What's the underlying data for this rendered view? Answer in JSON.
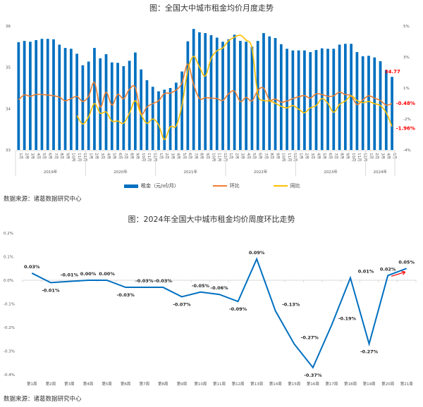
{
  "chart_data": [
    {
      "type": "bar+line",
      "title": "图：全国大中城市租金均价月度走势",
      "source": "数据来源：诸葛数据研究中心",
      "y_left": {
        "ticks": [
          "36",
          "35",
          "34",
          "33"
        ],
        "range": [
          33,
          36
        ]
      },
      "y_right": {
        "ticks": [
          "5%",
          "3%",
          "1%",
          "-2%",
          "-4%"
        ]
      },
      "years": [
        "2019年",
        "2020年",
        "2021年",
        "2022年",
        "2023年",
        "2024年"
      ],
      "month_labels": [
        "1月",
        "2月",
        "3月",
        "4月",
        "5月",
        "6月",
        "7月",
        "8月",
        "9月",
        "10月",
        "11月",
        "12月"
      ],
      "x_months_count": 65,
      "legend": [
        {
          "name": "租金（元/㎡/月）",
          "color": "#0070C0",
          "kind": "bar"
        },
        {
          "name": "环比",
          "color": "#ED7D31",
          "kind": "line"
        },
        {
          "name": "同比",
          "color": "#FFC000",
          "kind": "line"
        }
      ],
      "series": [
        {
          "name": "租金（元/㎡/月）",
          "values": [
            35.61,
            35.64,
            35.62,
            35.66,
            35.69,
            35.69,
            35.68,
            35.55,
            35.47,
            35.45,
            35.33,
            35.05,
            35.14,
            35.47,
            35.22,
            35.32,
            35.12,
            35.11,
            35.03,
            35.16,
            35.36,
            34.95,
            34.69,
            34.53,
            34.42,
            34.46,
            34.5,
            34.63,
            34.9,
            35.63,
            35.93,
            35.85,
            35.83,
            35.78,
            35.72,
            35.62,
            35.68,
            35.79,
            35.64,
            35.62,
            35.5,
            35.64,
            35.83,
            35.75,
            35.71,
            35.56,
            35.45,
            35.41,
            35.41,
            35.41,
            35.37,
            35.42,
            35.46,
            35.45,
            35.45,
            35.55,
            35.57,
            35.57,
            35.37,
            35.27,
            35.28,
            35.24,
            35.15,
            34.93,
            34.77
          ]
        },
        {
          "name": "环比",
          "values": [
            -0.24,
            0.08,
            -0.01,
            0.11,
            0.1,
            0.07,
            0.02,
            -0.07,
            -0.3,
            -0.16,
            -0.02,
            -0.34,
            -0.02,
            0.89,
            -0.7,
            0.25,
            -0.57,
            0.11,
            -0.16,
            0.43,
            0.57,
            -1.11,
            -0.7,
            -0.48,
            -0.3,
            0.16,
            0.2,
            0.39,
            0.84,
            2.07,
            0.75,
            -0.16,
            -0.1,
            -0.13,
            -0.16,
            -0.28,
            0.15,
            0.33,
            -0.35,
            -0.08,
            -0.31,
            0.37,
            0.52,
            -0.24,
            -0.19,
            -0.39,
            -0.31,
            -0.16,
            -0.04,
            0.03,
            -0.13,
            0.15,
            0.1,
            -0.01,
            0.02,
            0.26,
            0.1,
            0.02,
            -0.54,
            -0.24,
            0.02,
            -0.13,
            -0.28,
            -0.58,
            -0.48
          ]
        },
        {
          "name": "同比",
          "values": [
            null,
            null,
            null,
            null,
            null,
            null,
            null,
            null,
            null,
            null,
            -1.25,
            -1.8,
            -1.34,
            -0.48,
            -1.11,
            -1.02,
            -1.61,
            -1.61,
            -1.75,
            -1.11,
            -0.3,
            -1.2,
            -1.75,
            -1.48,
            -1.84,
            -2.8,
            -1.98,
            -1.93,
            -0.61,
            1.66,
            2.57,
            1.89,
            1.3,
            2.43,
            2.93,
            3.11,
            3.57,
            3.8,
            3.93,
            3.61,
            3.11,
            0.14,
            -0.28,
            -0.31,
            -0.46,
            -0.66,
            -0.76,
            -0.61,
            -0.84,
            -1.07,
            -0.76,
            -0.61,
            -0.16,
            -0.46,
            -1.04,
            -0.54,
            -0.31,
            0.02,
            -0.28,
            -0.42,
            -0.35,
            -0.49,
            -0.61,
            -1.07,
            -1.96
          ]
        }
      ],
      "annotations": [
        {
          "text": "34.77",
          "series": "租金（元/㎡/月）",
          "color": "#FF0000"
        },
        {
          "text": "-0.48%",
          "series": "环比",
          "color": "#FF0000"
        },
        {
          "text": "-1.96%",
          "series": "同比",
          "color": "#FF0000"
        }
      ]
    },
    {
      "type": "line",
      "title": "图：2024年全国大中城市租金均价周度环比走势",
      "source": "数据来源：诸葛数据研究中心",
      "categories": [
        "第1周",
        "第2周",
        "第3周",
        "第4周",
        "第5周",
        "第6周",
        "第7周",
        "第8周",
        "第9周",
        "第10周",
        "第11周",
        "第12周",
        "第13周",
        "第14周",
        "第15周",
        "第16周",
        "第17周",
        "第18周",
        "第19周",
        "第20周",
        "第21周"
      ],
      "y_ticks": [
        "0.2%",
        "0.1%",
        "0.0%",
        "-0.1%",
        "-0.2%",
        "-0.3%",
        "-0.4%"
      ],
      "ylim": [
        -0.4,
        0.2
      ],
      "series": [
        {
          "name": "环比",
          "color": "#0070C0",
          "values": [
            0.03,
            -0.01,
            -0.005,
            0.0,
            0.0,
            -0.03,
            -0.03,
            -0.03,
            -0.07,
            -0.05,
            -0.06,
            -0.09,
            0.09,
            -0.13,
            -0.27,
            -0.37,
            -0.19,
            0.01,
            -0.27,
            0.02,
            0.05
          ]
        }
      ],
      "data_labels": [
        "0.03%",
        "-0.01%",
        "-0.01%",
        "0.00%",
        "0.00%",
        "-0.03%",
        "-0.03%",
        "-0.03%",
        "-0.07%",
        "-0.05%",
        "-0.06%",
        "-0.09%",
        "0.09%",
        "-0.13%",
        "-0.27%",
        "-0.37%",
        "-0.19%",
        "0.01%",
        "-0.27%",
        "0.02%",
        "0.05%"
      ],
      "annotations": [
        {
          "kind": "arrow",
          "color": "#FF0000",
          "direction": "up-right"
        }
      ]
    }
  ]
}
